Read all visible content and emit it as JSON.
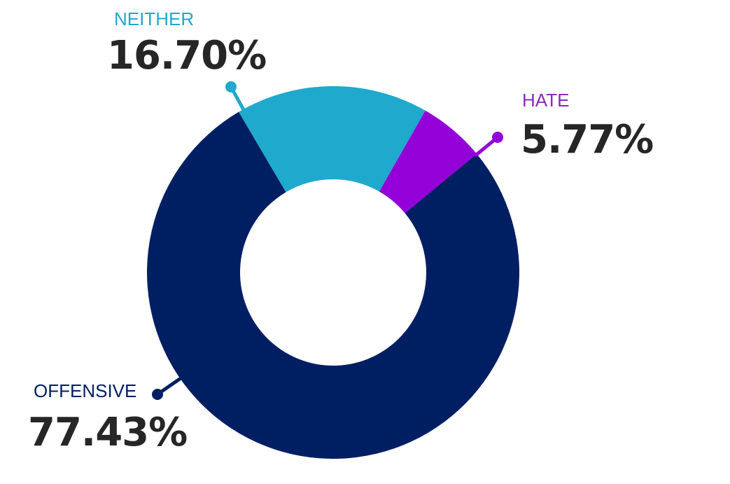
{
  "chart_data": {
    "type": "pie",
    "variant": "donut",
    "series": [
      {
        "name": "NEITHER",
        "value": 16.7,
        "value_label": "16.70%",
        "color": "#1fa9cd",
        "label_color": "#1fa9cd"
      },
      {
        "name": "HATE",
        "value": 5.77,
        "value_label": "5.77%",
        "color": "#9400d8",
        "label_color": "#8b2bb8"
      },
      {
        "name": "OFFENSIVE",
        "value": 77.43,
        "value_label": "77.43%",
        "color": "#001f63",
        "label_color": "#001f63"
      }
    ],
    "legend": "none",
    "labels": "callouts with leader lines"
  }
}
